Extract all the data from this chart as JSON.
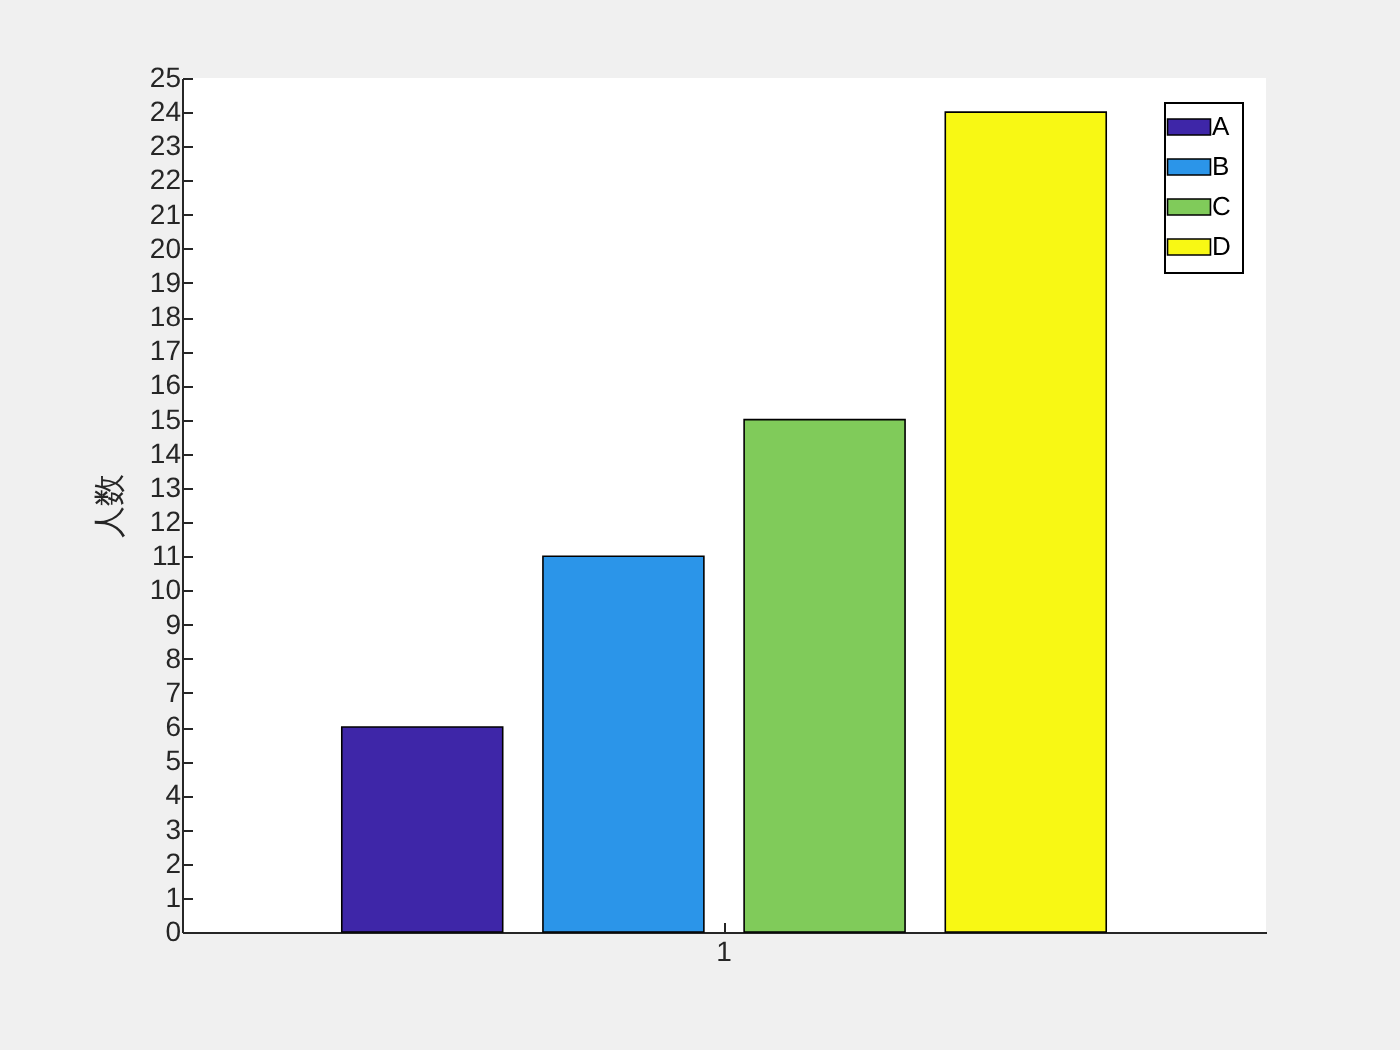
{
  "chart_data": {
    "type": "bar",
    "categories": [
      "1"
    ],
    "ylabel": "人数",
    "ylim": [
      0,
      25
    ],
    "yticks": [
      0,
      1,
      2,
      3,
      4,
      5,
      6,
      7,
      8,
      9,
      10,
      11,
      12,
      13,
      14,
      15,
      16,
      17,
      18,
      19,
      20,
      21,
      22,
      23,
      24,
      25
    ],
    "grid": false,
    "legend": "top right",
    "series": [
      {
        "name": "A",
        "color": "#3e26a8",
        "values": [
          6
        ]
      },
      {
        "name": "B",
        "color": "#2b95e9",
        "values": [
          11
        ]
      },
      {
        "name": "C",
        "color": "#80cb5a",
        "values": [
          15
        ]
      },
      {
        "name": "D",
        "color": "#f8f814",
        "values": [
          24
        ]
      }
    ]
  }
}
